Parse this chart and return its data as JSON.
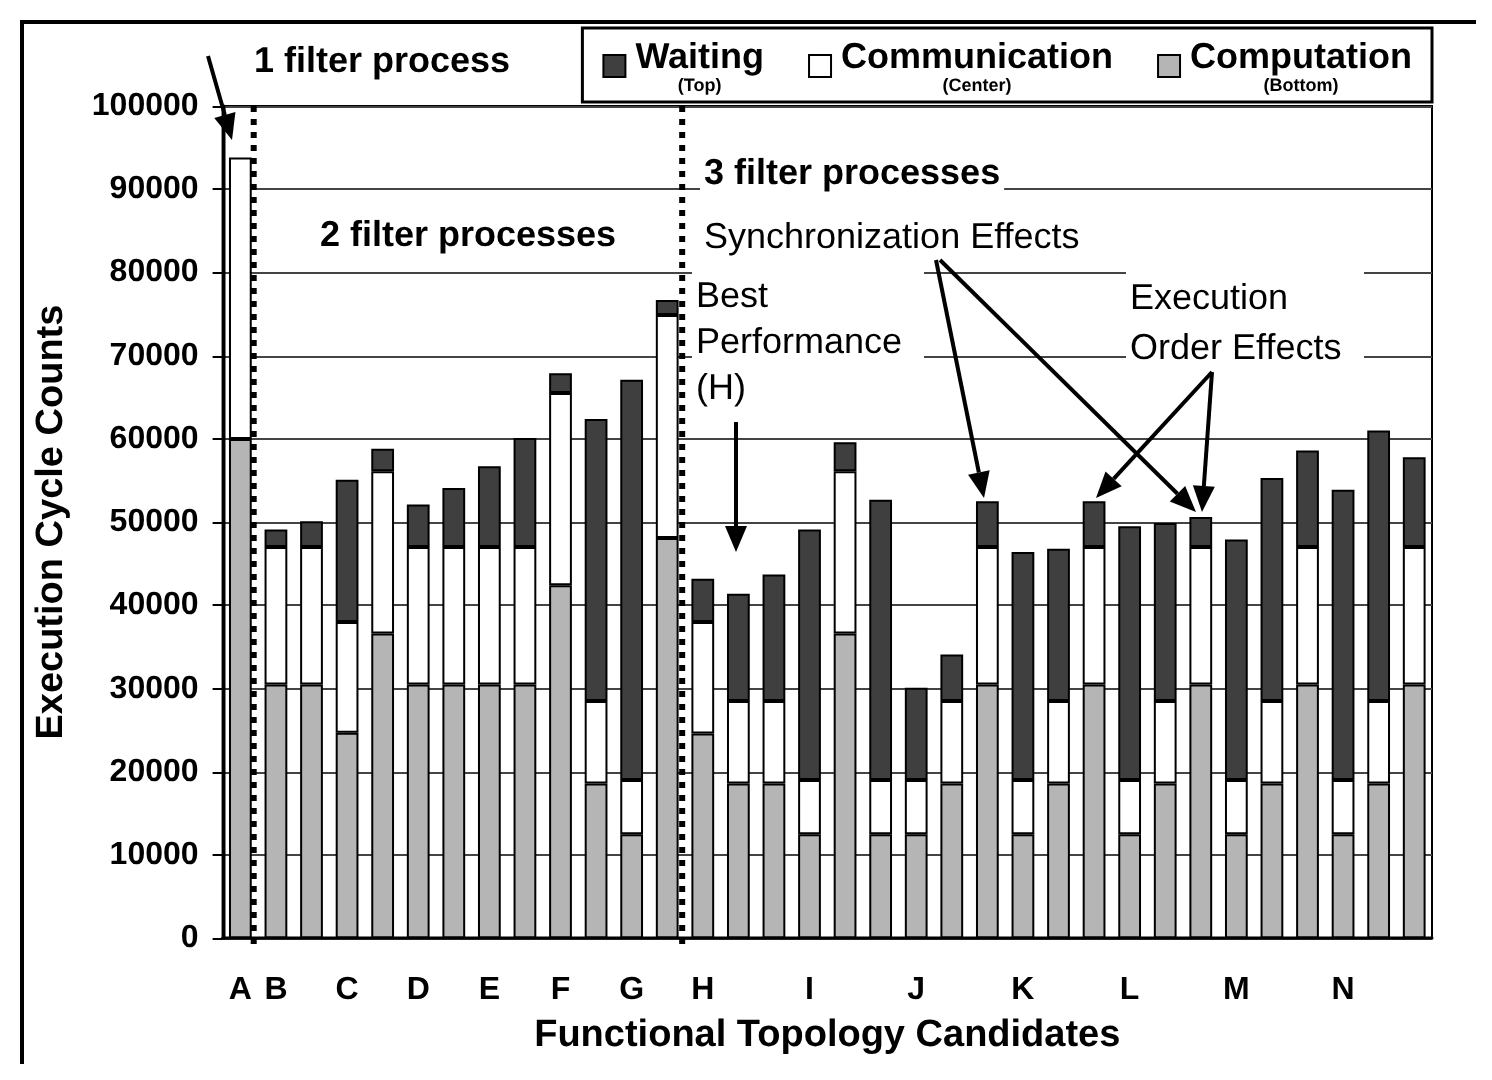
{
  "chart_data": {
    "type": "bar",
    "stacked": true,
    "xlabel": "Functional Topology Candidates",
    "ylabel": "Execution Cycle Counts",
    "categories": [
      "A",
      "B",
      null,
      "C",
      null,
      "D",
      null,
      "E",
      null,
      "F",
      null,
      "G",
      null,
      "H",
      null,
      null,
      "I",
      null,
      null,
      "J",
      null,
      null,
      "K",
      null,
      null,
      "L",
      null,
      null,
      "M",
      null,
      null,
      "N",
      null,
      null
    ],
    "series": [
      {
        "name": "Computation\n(Bottom)",
        "color": "#b5b5b5",
        "values": [
          60000,
          30500,
          30500,
          24700,
          36600,
          30500,
          30500,
          30500,
          30500,
          42400,
          18600,
          12500,
          48100,
          24600,
          18600,
          18600,
          12500,
          36600,
          12500,
          12500,
          18600,
          30500,
          12500,
          18600,
          30500,
          12500,
          18600,
          30500,
          12500,
          18600,
          30500,
          12500,
          18600,
          30500
        ]
      },
      {
        "name": "Communication\n(Center)",
        "color": "#ffffff",
        "values": [
          33800,
          16500,
          16500,
          13300,
          19500,
          16500,
          16500,
          16500,
          16500,
          23100,
          9900,
          6500,
          26800,
          13400,
          9900,
          9900,
          6500,
          19500,
          6500,
          6500,
          9900,
          16500,
          6500,
          9900,
          16500,
          6500,
          9900,
          16500,
          6500,
          9900,
          16500,
          6500,
          9900,
          16500
        ]
      },
      {
        "name": "Waiting\n(Top)",
        "color": "#3f3f3f",
        "values": [
          null,
          2100,
          3100,
          17100,
          2700,
          5100,
          7100,
          9700,
          13100,
          2400,
          33900,
          48100,
          1800,
          5200,
          12900,
          15200,
          30100,
          3500,
          33700,
          11100,
          5600,
          5500,
          27400,
          18300,
          5500,
          30500,
          21400,
          3600,
          28900,
          26800,
          11600,
          34900,
          32500,
          10800
        ]
      }
    ],
    "ylim": [
      0,
      100000
    ],
    "yticks": [
      0,
      10000,
      20000,
      30000,
      40000,
      50000,
      60000,
      70000,
      80000,
      90000,
      100000
    ],
    "grid": "y",
    "legend": "top right",
    "annotations": [
      "1 filter process",
      "2 filter processes",
      "3 filter processes",
      "Synchronization Effects",
      "Best Performance (H)",
      "Execution Order Effects"
    ]
  }
}
